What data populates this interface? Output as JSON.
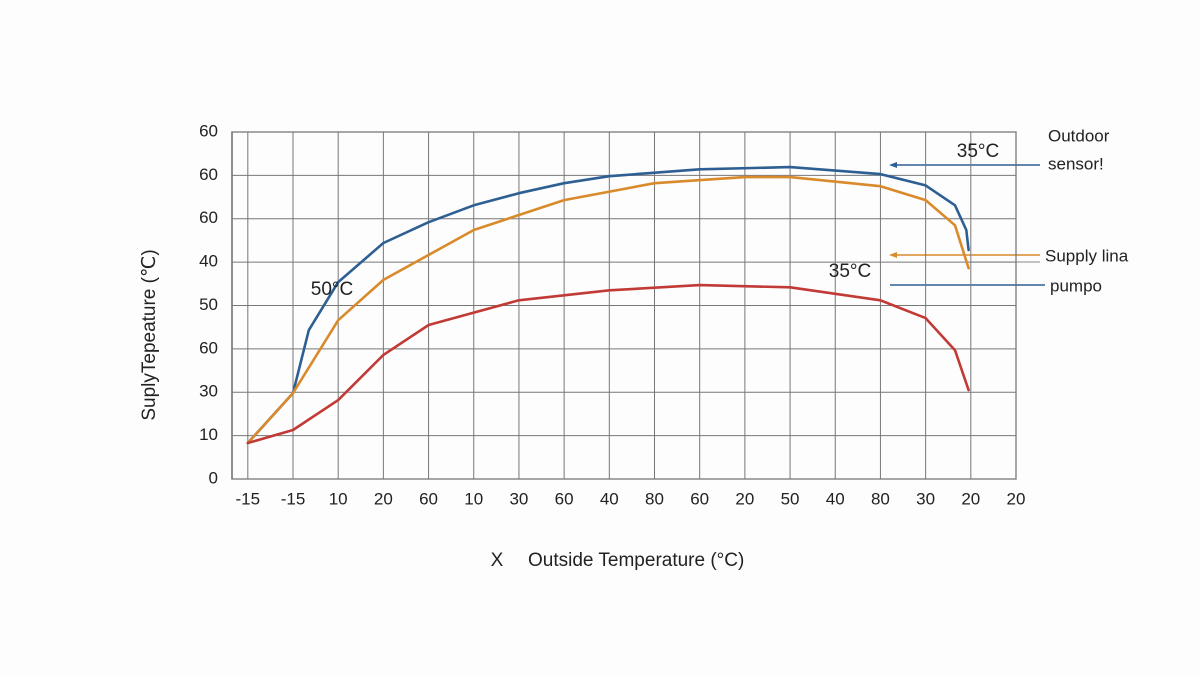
{
  "chart_data": {
    "type": "line",
    "ylabel": "SuplyTepeature (℃)",
    "xlabel_prefix": "X",
    "xlabel": "Outside Temperature (°C)",
    "xlim": [
      -0.35,
      17
    ],
    "xticks": [
      {
        "value": 0,
        "label": "-15"
      },
      {
        "value": 1,
        "label": "-15"
      },
      {
        "value": 2,
        "label": "10"
      },
      {
        "value": 3,
        "label": "20"
      },
      {
        "value": 4,
        "label": "60"
      },
      {
        "value": 5,
        "label": "10"
      },
      {
        "value": 6,
        "label": "30"
      },
      {
        "value": 7,
        "label": "60"
      },
      {
        "value": 8,
        "label": "40"
      },
      {
        "value": 9,
        "label": "80"
      },
      {
        "value": 10,
        "label": "60"
      },
      {
        "value": 11,
        "label": "20"
      },
      {
        "value": 12,
        "label": "50"
      },
      {
        "value": 13,
        "label": "40"
      },
      {
        "value": 14,
        "label": "80"
      },
      {
        "value": 15,
        "label": "30"
      },
      {
        "value": 16,
        "label": "20"
      },
      {
        "value": 17,
        "label": "20"
      }
    ],
    "ylim": [
      0,
      80
    ],
    "yticks": [
      0,
      10,
      {
        "value": 20,
        "label": "30"
      },
      {
        "value": 30,
        "label": "60"
      },
      {
        "value": 40,
        "label": "50"
      },
      {
        "value": 50,
        "label": "40"
      },
      60,
      {
        "value": 70,
        "label": "60"
      },
      {
        "value": 80,
        "label": "60"
      }
    ],
    "grid": true,
    "series": [
      {
        "color": "#2e5f93",
        "x": [
          0,
          1,
          1.35,
          2,
          3,
          4,
          5,
          6,
          7,
          8,
          10,
          12,
          14,
          15,
          15.65,
          15.9,
          15.95
        ],
        "values": [
          8.3,
          19.8,
          34.3,
          45.4,
          54.4,
          59.2,
          63.1,
          65.9,
          68.2,
          69.8,
          71.4,
          71.9,
          70.3,
          67.7,
          63.1,
          57.4,
          52.8
        ]
      },
      {
        "color": "#d98a2b",
        "x": [
          0,
          1,
          2,
          3,
          5,
          7,
          9,
          11,
          12,
          14,
          15,
          15.65,
          15.95
        ],
        "values": [
          8.3,
          19.8,
          36.6,
          45.9,
          57.4,
          64.3,
          68.2,
          69.6,
          69.6,
          67.5,
          64.3,
          58.5,
          48.6
        ]
      },
      {
        "color": "#c23a36",
        "x": [
          0,
          1,
          2,
          3,
          4,
          6,
          8,
          10,
          12,
          14,
          15,
          15.65,
          15.95
        ],
        "values": [
          8.3,
          11.3,
          18.2,
          28.6,
          35.5,
          41.2,
          43.5,
          44.7,
          44.2,
          41.2,
          37.1,
          29.7,
          20.5
        ]
      }
    ],
    "annotations": [
      "35°C",
      "50°C",
      "35°C"
    ],
    "side_labels": [
      "Outdoor",
      "sensor!",
      "Supply lina",
      "pumpo"
    ]
  }
}
